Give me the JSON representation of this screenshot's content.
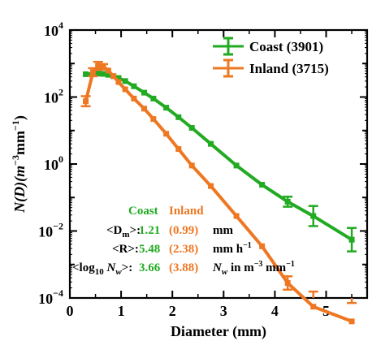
{
  "chart_data": {
    "type": "line",
    "ylabel_parts": {
      "pre": "N(D)(m",
      "exp1": "−3",
      "mid": "mm",
      "exp2": "−1",
      "post": ")"
    },
    "xlabel": "Diameter (mm)",
    "xlim": [
      0,
      5.8
    ],
    "ylim_log10": [
      -4,
      4
    ],
    "x_ticks": [
      0,
      1,
      2,
      3,
      4,
      5
    ],
    "x_tick_labels": [
      "0",
      "1",
      "2",
      "3",
      "4",
      "5"
    ],
    "y_ticks_log10": [
      -4,
      -2,
      0,
      2,
      4
    ],
    "y_tick_labels": [
      {
        "base": "10",
        "exp": "−4"
      },
      {
        "base": "10",
        "exp": "−2"
      },
      {
        "base": "10",
        "exp": "0"
      },
      {
        "base": "10",
        "exp": "2"
      },
      {
        "base": "10",
        "exp": "4"
      }
    ],
    "series": [
      {
        "name": "Coast (3901)",
        "color": "#22aa22",
        "x": [
          0.31,
          0.45,
          0.55,
          0.65,
          0.75,
          0.85,
          0.95,
          1.08,
          1.25,
          1.45,
          1.63,
          1.88,
          2.12,
          2.38,
          2.75,
          3.25,
          3.75,
          4.25,
          4.75,
          5.5
        ],
        "y": [
          480,
          500,
          500,
          490,
          460,
          420,
          370,
          300,
          210,
          135,
          90,
          48,
          25,
          12,
          4.0,
          0.9,
          0.24,
          0.075,
          0.028,
          0.0055
        ],
        "err": [
          0,
          0,
          0,
          0,
          0,
          0,
          0,
          0,
          0,
          0,
          0,
          0,
          0,
          0,
          0,
          0,
          0,
          0.15,
          0.3,
          0.35
        ]
      },
      {
        "name": "Inland (3715)",
        "color": "#ee7722",
        "x": [
          0.31,
          0.45,
          0.55,
          0.65,
          0.75,
          0.85,
          0.95,
          1.08,
          1.25,
          1.45,
          1.63,
          1.88,
          2.12,
          2.38,
          2.75,
          3.25,
          3.75,
          4.25,
          4.75,
          5.5
        ],
        "y": [
          75,
          550,
          850,
          800,
          620,
          420,
          280,
          170,
          90,
          45,
          22,
          8,
          2.8,
          0.9,
          0.22,
          0.028,
          0.0035,
          0.00028,
          5.5e-05,
          2e-05
        ],
        "err": [
          0.15,
          0.12,
          0.12,
          0.08,
          0,
          0,
          0,
          0,
          0,
          0,
          0,
          0,
          0,
          0,
          0,
          0,
          0,
          0.2,
          0.45,
          0.55
        ]
      }
    ],
    "legend_position": "top-right",
    "annotations": {
      "header_coast": "Coast",
      "header_inland": "Inland",
      "rows": [
        {
          "label": "<D",
          "sub": "m",
          "label_end": ">:",
          "coast": "1.21",
          "inland": "(0.99)",
          "unit": "mm",
          "unit_exp": ""
        },
        {
          "label": "<R>:",
          "sub": "",
          "label_end": "",
          "coast": "5.48",
          "inland": "(2.38)",
          "unit": "mm h",
          "unit_exp": "−1"
        },
        {
          "label": "<log",
          "sub": "10",
          "label_end": " N",
          "sub2": "w",
          "label_end2": ">:",
          "coast": "3.66",
          "inland": "(3.88)",
          "unit_n": "N",
          "unit_n_sub": "w",
          "unit_rest": " in m",
          "unit_exp1": "−3",
          "unit_mid": " mm",
          "unit_exp2": "−1"
        }
      ]
    }
  }
}
